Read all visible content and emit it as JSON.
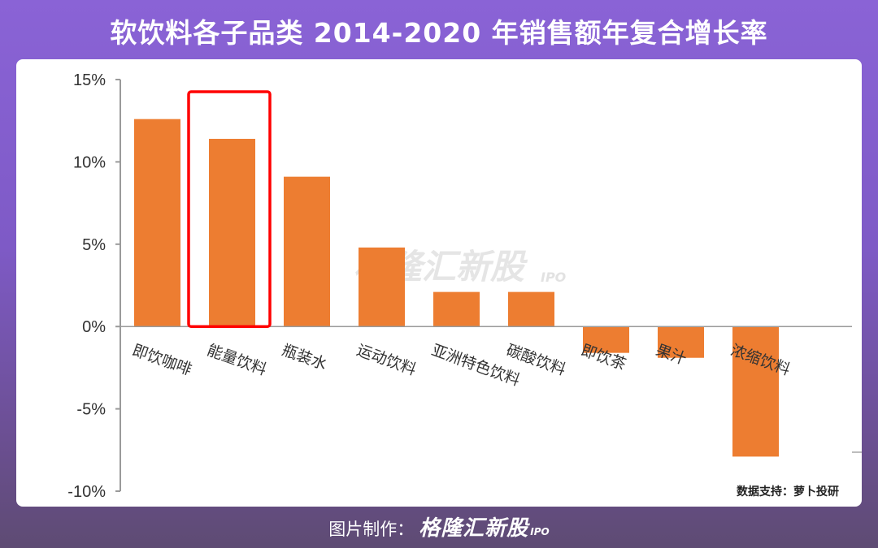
{
  "header": {
    "title": "软饮料各子品类 2014-2020 年销售额年复合增长率"
  },
  "footer": {
    "prefix": "图片制作：",
    "brand": "格隆汇新股",
    "brand_sub": "IPO"
  },
  "watermark": {
    "text": "格隆汇新股",
    "sub": "IPO"
  },
  "colors": {
    "bar": "#ed7d31",
    "highlight": "#ff0000",
    "axis": "#9a9a9a",
    "text": "#333333"
  },
  "chart_data": {
    "type": "bar",
    "title": "",
    "xlabel": "",
    "ylabel": "",
    "ylim": [
      -10,
      15
    ],
    "yticks": [
      15,
      10,
      5,
      0,
      -5,
      -10
    ],
    "ytick_labels": [
      "15%",
      "10%",
      "5%",
      "0%",
      "-5%",
      "-10%"
    ],
    "categories": [
      "即饮咖啡",
      "能量饮料",
      "瓶装水",
      "运动饮料",
      "亚洲特色饮料",
      "碳酸饮料",
      "即饮茶",
      "果汁",
      "浓缩饮料"
    ],
    "values": [
      12.6,
      11.4,
      9.1,
      4.8,
      2.1,
      2.1,
      -1.6,
      -1.9,
      -7.9
    ],
    "highlight_index": 1,
    "source": "数据支持：萝卜投研"
  }
}
